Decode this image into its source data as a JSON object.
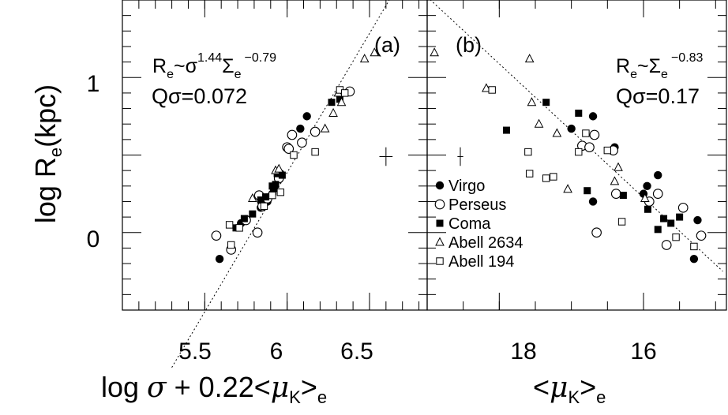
{
  "chart_data": [
    {
      "panel": "(a)",
      "type": "scatter",
      "xlim": [
        5.0,
        6.85
      ],
      "ylim": [
        -0.5,
        1.5
      ],
      "xticks": [
        5.5,
        6,
        6.5
      ],
      "xtick_labels": [
        "5.5",
        "6",
        "6.5"
      ],
      "yticks": [
        0,
        1
      ],
      "ytick_labels": [
        "0",
        "1"
      ],
      "xlabel": {
        "pre": "log ",
        "sigma": "σ",
        "mid": " + 0.22<",
        "mu": "μ",
        "sub_k": "K",
        "post": ">",
        "sub_e": "e"
      },
      "annotation": {
        "re": "R",
        "re_sub": "e",
        "tilde": "~",
        "sigma": "σ",
        "sigma_exp": "1.44",
        "Sigma": "Σ",
        "Sigma_sub": "e",
        "Sigma_exp": "−0.79"
      },
      "q_text": "Qσ=0.072",
      "fit_line": [
        [
          5.3,
          -0.87
        ],
        [
          6.62,
          1.5
        ]
      ],
      "error_bar": {
        "x": 6.6,
        "y": 0.49,
        "dx": 0.04,
        "dy": 0.06
      },
      "series": [
        {
          "name": "Virgo",
          "marker": "filled-circle",
          "points": [
            [
              5.59,
              -0.17
            ],
            [
              5.72,
              0.06
            ],
            [
              5.84,
              0.16
            ],
            [
              5.91,
              0.25
            ],
            [
              5.92,
              0.28
            ],
            [
              5.96,
              0.38
            ],
            [
              6.08,
              0.67
            ],
            [
              6.12,
              0.75
            ],
            [
              5.88,
              0.2
            ]
          ]
        },
        {
          "name": "Perseus",
          "marker": "open-circle",
          "points": [
            [
              5.57,
              -0.02
            ],
            [
              5.66,
              -0.11
            ],
            [
              5.75,
              0.08
            ],
            [
              5.82,
              0.0
            ],
            [
              5.83,
              0.24
            ],
            [
              5.85,
              0.17
            ],
            [
              5.88,
              0.22
            ],
            [
              5.95,
              0.35
            ],
            [
              6.0,
              0.55
            ],
            [
              6.01,
              0.54
            ],
            [
              6.03,
              0.63
            ],
            [
              6.09,
              0.58
            ],
            [
              6.17,
              0.65
            ],
            [
              6.38,
              0.91
            ]
          ]
        },
        {
          "name": "Coma",
          "marker": "filled-square",
          "points": [
            [
              5.69,
              0.03
            ],
            [
              5.74,
              0.09
            ],
            [
              5.79,
              0.12
            ],
            [
              5.84,
              0.21
            ],
            [
              5.87,
              0.23
            ],
            [
              5.91,
              0.3
            ],
            [
              5.93,
              0.31
            ],
            [
              5.94,
              0.38
            ],
            [
              6.27,
              0.84
            ],
            [
              6.32,
              0.86
            ],
            [
              5.97,
              0.37
            ]
          ]
        },
        {
          "name": "Abell 2634",
          "marker": "open-triangle",
          "points": [
            [
              5.79,
              0.22
            ],
            [
              5.93,
              0.4
            ],
            [
              5.95,
              0.41
            ],
            [
              6.23,
              0.67
            ],
            [
              6.28,
              0.77
            ],
            [
              6.33,
              0.84
            ],
            [
              6.47,
              1.12
            ],
            [
              6.53,
              1.16
            ],
            [
              6.31,
              0.9
            ]
          ]
        },
        {
          "name": "Abell 194",
          "marker": "open-square",
          "points": [
            [
              5.65,
              0.05
            ],
            [
              5.66,
              -0.08
            ],
            [
              5.71,
              0.03
            ],
            [
              5.86,
              0.17
            ],
            [
              5.91,
              0.24
            ],
            [
              5.96,
              0.26
            ],
            [
              6.04,
              0.5
            ],
            [
              6.17,
              0.52
            ],
            [
              6.32,
              0.92
            ],
            [
              6.35,
              0.9
            ]
          ]
        }
      ]
    },
    {
      "panel": "(b)",
      "type": "scatter",
      "xlim": [
        19.0,
        14.85
      ],
      "ylim": [
        -0.5,
        1.5
      ],
      "xticks": [
        18,
        16
      ],
      "xtick_labels": [
        "18",
        "16"
      ],
      "yticks": [
        0,
        1
      ],
      "xlabel": {
        "pre": "<",
        "mu": "μ",
        "sub_k": "K",
        "post": ">",
        "sub_e": "e"
      },
      "annotation": {
        "re": "R",
        "re_sub": "e",
        "tilde": "~",
        "Sigma": "Σ",
        "Sigma_sub": "e",
        "Sigma_exp": "−0.83"
      },
      "q_text": "Qσ=0.17",
      "fit_line": [
        [
          19.0,
          1.52
        ],
        [
          14.9,
          -0.25
        ]
      ],
      "error_bar": {
        "x": 18.54,
        "y": 0.49,
        "dx": 0.04,
        "dy": 0.06
      },
      "legend_position": "lower-left",
      "series": [
        {
          "name": "Virgo",
          "marker": "filled-circle",
          "points": [
            [
              17.0,
              0.67
            ],
            [
              16.7,
              0.75
            ],
            [
              16.4,
              0.55
            ],
            [
              16.0,
              0.25
            ],
            [
              15.95,
              0.3
            ],
            [
              15.8,
              0.37
            ],
            [
              15.3,
              -0.17
            ],
            [
              15.25,
              0.08
            ],
            [
              16.7,
              0.2
            ]
          ]
        },
        {
          "name": "Perseus",
          "marker": "open-circle",
          "points": [
            [
              16.85,
              0.56
            ],
            [
              16.75,
              0.55
            ],
            [
              16.68,
              0.63
            ],
            [
              16.42,
              0.53
            ],
            [
              16.38,
              0.25
            ],
            [
              15.92,
              0.2
            ],
            [
              15.8,
              0.25
            ],
            [
              15.68,
              -0.08
            ],
            [
              15.2,
              -0.02
            ],
            [
              16.65,
              0.0
            ],
            [
              15.45,
              0.16
            ]
          ]
        },
        {
          "name": "Coma",
          "marker": "filled-square",
          "points": [
            [
              17.9,
              0.66
            ],
            [
              17.35,
              0.84
            ],
            [
              16.9,
              0.77
            ],
            [
              16.78,
              0.27
            ],
            [
              16.28,
              0.24
            ],
            [
              15.94,
              0.15
            ],
            [
              15.72,
              0.09
            ],
            [
              15.62,
              0.06
            ],
            [
              15.5,
              0.1
            ],
            [
              15.8,
              0.02
            ]
          ]
        },
        {
          "name": "Abell 2634",
          "marker": "open-triangle",
          "points": [
            [
              18.9,
              1.16
            ],
            [
              18.18,
              0.93
            ],
            [
              17.58,
              1.12
            ],
            [
              17.55,
              0.84
            ],
            [
              17.2,
              0.64
            ],
            [
              17.05,
              0.28
            ],
            [
              16.4,
              0.33
            ],
            [
              16.35,
              0.42
            ],
            [
              15.98,
              0.22
            ],
            [
              17.45,
              0.7
            ]
          ]
        },
        {
          "name": "Abell 194",
          "marker": "open-square",
          "points": [
            [
              18.1,
              0.92
            ],
            [
              17.6,
              0.52
            ],
            [
              17.58,
              0.38
            ],
            [
              17.35,
              0.35
            ],
            [
              17.25,
              0.36
            ],
            [
              16.9,
              0.52
            ],
            [
              16.8,
              0.64
            ],
            [
              16.5,
              0.53
            ],
            [
              16.3,
              0.07
            ],
            [
              15.55,
              -0.03
            ],
            [
              15.3,
              -0.09
            ]
          ]
        }
      ]
    }
  ],
  "y_axis": {
    "label_pre": "log R",
    "label_sub": "e",
    "label_post": "(kpc)"
  },
  "legend": [
    {
      "label": "Virgo",
      "marker": "filled-circle"
    },
    {
      "label": "Perseus",
      "marker": "open-circle"
    },
    {
      "label": "Coma",
      "marker": "filled-square"
    },
    {
      "label": "Abell 2634",
      "marker": "open-triangle"
    },
    {
      "label": "Abell 194",
      "marker": "open-square"
    }
  ]
}
